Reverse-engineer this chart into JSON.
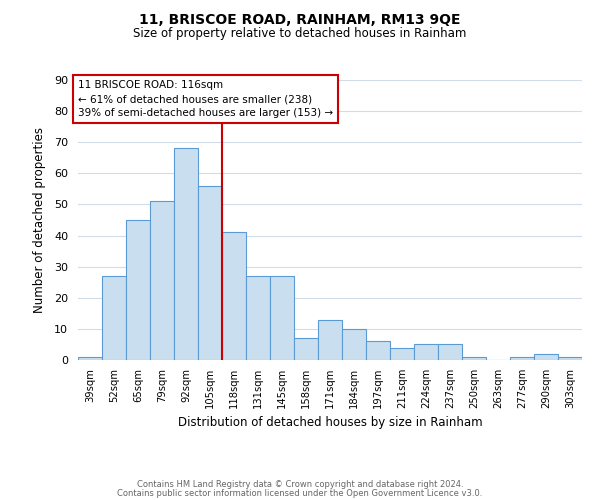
{
  "title": "11, BRISCOE ROAD, RAINHAM, RM13 9QE",
  "subtitle": "Size of property relative to detached houses in Rainham",
  "xlabel": "Distribution of detached houses by size in Rainham",
  "ylabel": "Number of detached properties",
  "bar_labels": [
    "39sqm",
    "52sqm",
    "65sqm",
    "79sqm",
    "92sqm",
    "105sqm",
    "118sqm",
    "131sqm",
    "145sqm",
    "158sqm",
    "171sqm",
    "184sqm",
    "197sqm",
    "211sqm",
    "224sqm",
    "237sqm",
    "250sqm",
    "263sqm",
    "277sqm",
    "290sqm",
    "303sqm"
  ],
  "bar_values": [
    1,
    27,
    45,
    51,
    68,
    56,
    41,
    27,
    27,
    7,
    13,
    10,
    6,
    4,
    5,
    5,
    1,
    0,
    1,
    2,
    1
  ],
  "bar_color": "#c9dff0",
  "bar_edge_color": "#5b9bd5",
  "vline_color": "#cc0000",
  "ylim": [
    0,
    90
  ],
  "yticks": [
    0,
    10,
    20,
    30,
    40,
    50,
    60,
    70,
    80,
    90
  ],
  "annotation_title": "11 BRISCOE ROAD: 116sqm",
  "annotation_line1": "← 61% of detached houses are smaller (238)",
  "annotation_line2": "39% of semi-detached houses are larger (153) →",
  "footer1": "Contains HM Land Registry data © Crown copyright and database right 2024.",
  "footer2": "Contains public sector information licensed under the Open Government Licence v3.0.",
  "background_color": "#ffffff",
  "grid_color": "#d0dce8"
}
